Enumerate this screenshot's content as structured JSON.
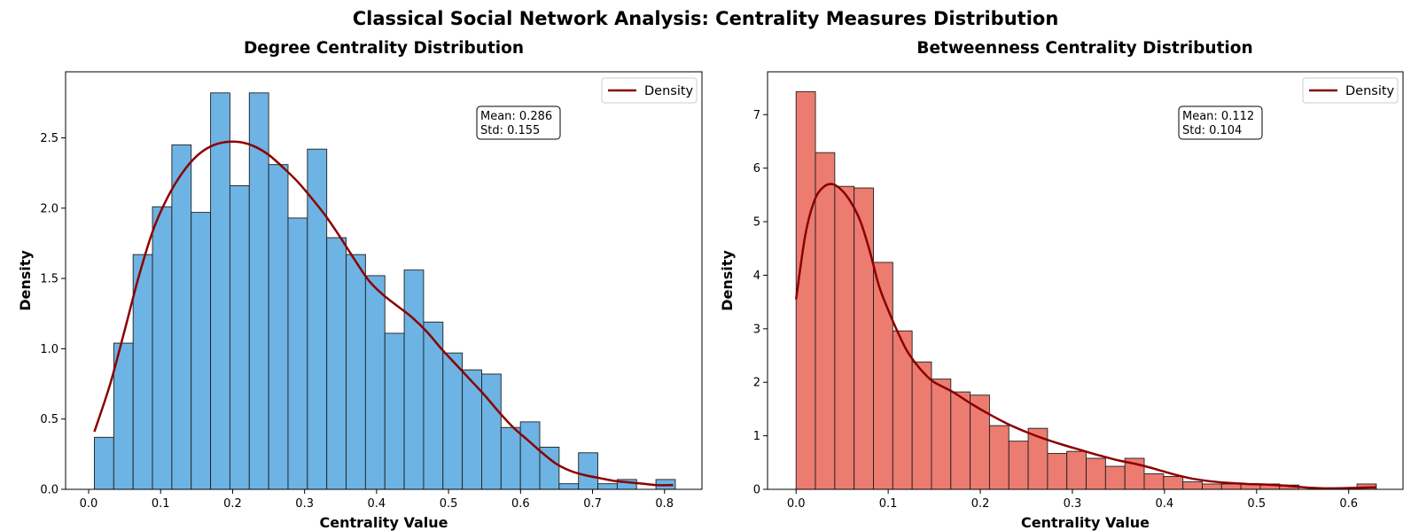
{
  "figure": {
    "suptitle": "Classical Social Network Analysis: Centrality Measures Distribution"
  },
  "chart_data": [
    {
      "type": "bar",
      "title": "Degree Centrality Distribution",
      "xlabel": "Centrality Value",
      "ylabel": "Density",
      "xlim": [
        -0.032,
        0.852
      ],
      "ylim": [
        0,
        2.97
      ],
      "xticks": [
        0.0,
        0.1,
        0.2,
        0.3,
        0.4,
        0.5,
        0.6,
        0.7,
        0.8
      ],
      "xtick_labels": [
        "0.0",
        "0.1",
        "0.2",
        "0.3",
        "0.4",
        "0.5",
        "0.6",
        "0.7",
        "0.8"
      ],
      "yticks": [
        0.0,
        0.5,
        1.0,
        1.5,
        2.0,
        2.5
      ],
      "ytick_labels": [
        "0.0",
        "0.5",
        "1.0",
        "1.5",
        "2.0",
        "2.5"
      ],
      "bin_start": 0.008,
      "bin_width": 0.0269,
      "values": [
        0.37,
        1.04,
        1.67,
        2.01,
        2.45,
        1.97,
        2.82,
        2.16,
        2.82,
        2.31,
        1.93,
        2.42,
        1.79,
        1.67,
        1.52,
        1.11,
        1.56,
        1.19,
        0.97,
        0.85,
        0.82,
        0.44,
        0.48,
        0.3,
        0.04,
        0.26,
        0.04,
        0.07,
        0.0,
        0.07
      ],
      "bar_color": "#6db3e3",
      "density": {
        "name": "Density",
        "color": "#8b0000",
        "x": [
          0.008,
          0.03,
          0.05,
          0.07,
          0.09,
          0.11,
          0.13,
          0.15,
          0.17,
          0.19,
          0.21,
          0.23,
          0.25,
          0.27,
          0.29,
          0.31,
          0.33,
          0.35,
          0.37,
          0.39,
          0.41,
          0.43,
          0.45,
          0.47,
          0.49,
          0.51,
          0.53,
          0.55,
          0.57,
          0.59,
          0.61,
          0.63,
          0.65,
          0.67,
          0.69,
          0.71,
          0.73,
          0.75,
          0.77,
          0.79,
          0.812
        ],
        "y": [
          0.41,
          0.75,
          1.13,
          1.52,
          1.85,
          2.08,
          2.25,
          2.37,
          2.44,
          2.47,
          2.47,
          2.44,
          2.38,
          2.29,
          2.19,
          2.07,
          1.94,
          1.79,
          1.63,
          1.48,
          1.38,
          1.3,
          1.22,
          1.12,
          1.0,
          0.89,
          0.78,
          0.67,
          0.55,
          0.44,
          0.35,
          0.26,
          0.18,
          0.13,
          0.1,
          0.08,
          0.06,
          0.05,
          0.04,
          0.03,
          0.03
        ]
      },
      "legend": {
        "label": "Density",
        "position": "upper right"
      },
      "stats_box": [
        "Mean: 0.286",
        "Std: 0.155"
      ]
    },
    {
      "type": "bar",
      "title": "Betweenness Centrality Distribution",
      "xlabel": "Centrality Value",
      "ylabel": "Density",
      "xlim": [
        -0.031,
        0.659
      ],
      "ylim": [
        0,
        7.8
      ],
      "xticks": [
        0.0,
        0.1,
        0.2,
        0.3,
        0.4,
        0.5,
        0.6
      ],
      "xtick_labels": [
        "0.0",
        "0.1",
        "0.2",
        "0.3",
        "0.4",
        "0.5",
        "0.6"
      ],
      "yticks": [
        0,
        1,
        2,
        3,
        4,
        5,
        6,
        7
      ],
      "ytick_labels": [
        "0",
        "1",
        "2",
        "3",
        "4",
        "5",
        "6",
        "7"
      ],
      "bin_start": 0.0,
      "bin_width": 0.021,
      "values": [
        7.43,
        6.29,
        5.66,
        5.63,
        4.24,
        2.96,
        2.38,
        2.06,
        1.82,
        1.76,
        1.19,
        0.9,
        1.14,
        0.67,
        0.71,
        0.58,
        0.43,
        0.58,
        0.29,
        0.24,
        0.14,
        0.1,
        0.1,
        0.1,
        0.1,
        0.08,
        0.0,
        0.0,
        0.0,
        0.1
      ],
      "bar_color": "#ec7b70",
      "density": {
        "name": "Density",
        "color": "#8b0000",
        "x": [
          0.0,
          0.01,
          0.02,
          0.03,
          0.04,
          0.05,
          0.06,
          0.07,
          0.08,
          0.09,
          0.1,
          0.11,
          0.12,
          0.13,
          0.14,
          0.15,
          0.17,
          0.19,
          0.21,
          0.23,
          0.25,
          0.27,
          0.29,
          0.31,
          0.33,
          0.35,
          0.37,
          0.39,
          0.41,
          0.43,
          0.45,
          0.47,
          0.49,
          0.51,
          0.53,
          0.55,
          0.57,
          0.59,
          0.61,
          0.63
        ],
        "y": [
          3.55,
          4.75,
          5.4,
          5.65,
          5.7,
          5.58,
          5.35,
          5.0,
          4.45,
          3.8,
          3.35,
          2.95,
          2.6,
          2.35,
          2.15,
          2.0,
          1.82,
          1.6,
          1.4,
          1.22,
          1.07,
          0.94,
          0.83,
          0.73,
          0.63,
          0.54,
          0.47,
          0.38,
          0.28,
          0.2,
          0.15,
          0.12,
          0.1,
          0.09,
          0.07,
          0.04,
          0.02,
          0.02,
          0.03,
          0.04
        ]
      },
      "legend": {
        "label": "Density",
        "position": "upper right"
      },
      "stats_box": [
        "Mean: 0.112",
        "Std: 0.104"
      ]
    }
  ]
}
